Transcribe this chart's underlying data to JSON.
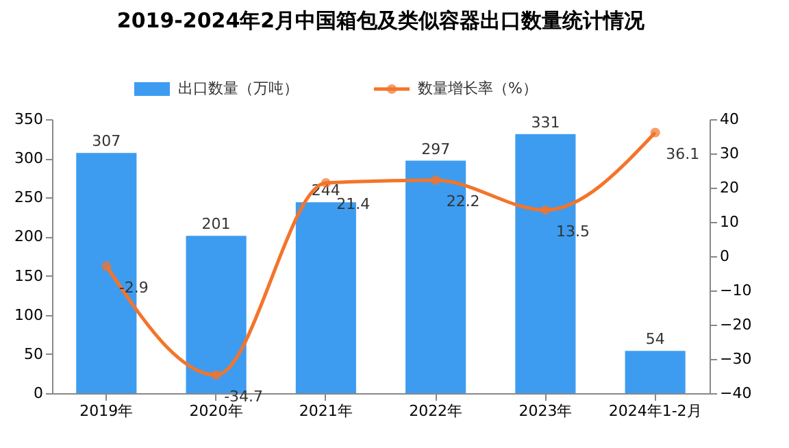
{
  "chart_data": {
    "type": "bar",
    "title": "2019-2024年2月中国箱包及类似容器出口数量统计情况",
    "categories": [
      "2019年",
      "2020年",
      "2021年",
      "2022年",
      "2023年",
      "2024年1-2月"
    ],
    "series": [
      {
        "name": "出口数量（万吨）",
        "color": "#3d9cf0",
        "values": [
          307,
          201,
          244,
          297,
          331,
          54
        ]
      },
      {
        "name": "数量增长率（%）",
        "type": "line",
        "axis": "y2",
        "color": "#f4742a",
        "values": [
          -2.9,
          -34.7,
          21.4,
          22.2,
          13.5,
          36.1
        ]
      }
    ],
    "ylim": [
      0,
      350
    ],
    "yticks": [
      0,
      50,
      100,
      150,
      200,
      250,
      300,
      350
    ],
    "y2lim": [
      -40,
      40
    ],
    "y2ticks": [
      -40,
      -30,
      -20,
      -10,
      0,
      10,
      20,
      30,
      40
    ],
    "data_labels": true,
    "grid": false,
    "legend": "top",
    "marker": "circle",
    "line_style": "solid"
  }
}
